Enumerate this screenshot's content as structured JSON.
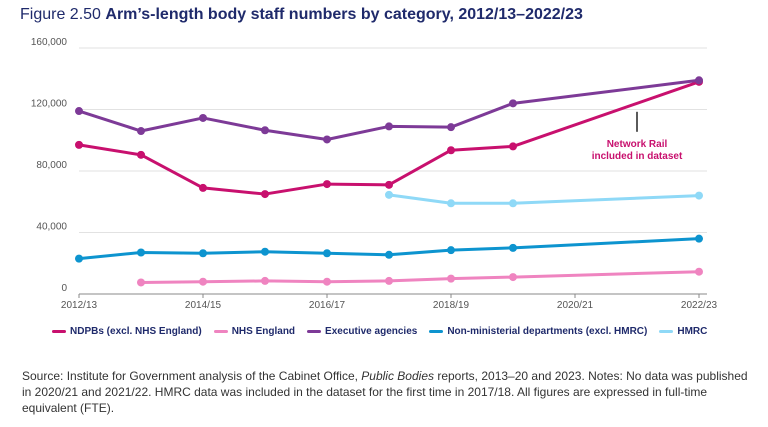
{
  "title": {
    "figure_number": "Figure 2.50",
    "text": "Arm’s-length body staff numbers by category, 2012/13–2022/23"
  },
  "chart_data": {
    "type": "line",
    "title": "Arm’s-length body staff numbers by category, 2012/13–2022/23",
    "xlabel": "",
    "ylabel": "",
    "x": [
      "2012/13",
      "2013/14",
      "2014/15",
      "2015/16",
      "2016/17",
      "2017/18",
      "2018/19",
      "2019/20",
      "2020/21",
      "2021/22",
      "2022/23"
    ],
    "x_tick_labels": [
      "2012/13",
      "2014/15",
      "2016/17",
      "2018/19",
      "2020/21",
      "2022/23"
    ],
    "ylim": [
      0,
      160000
    ],
    "y_ticks": [
      0,
      40000,
      80000,
      120000,
      160000
    ],
    "y_tick_labels": [
      "0",
      "40,000",
      "80,000",
      "120,000",
      "160,000"
    ],
    "grid": true,
    "series": [
      {
        "name": "NDPBs (excl. NHS England)",
        "color": "#c8106e",
        "values": [
          97000,
          90500,
          69000,
          65000,
          71500,
          71000,
          93500,
          96000,
          null,
          null,
          138000
        ]
      },
      {
        "name": "NHS England",
        "color": "#ef84c0",
        "values": [
          null,
          7500,
          8000,
          8500,
          8000,
          8500,
          10000,
          11000,
          null,
          null,
          14500
        ]
      },
      {
        "name": "Executive agencies",
        "color": "#7d3a97",
        "values": [
          119000,
          106000,
          114500,
          106500,
          100500,
          109000,
          108500,
          124000,
          null,
          null,
          139000
        ]
      },
      {
        "name": "Non-ministerial departments (excl. HMRC)",
        "color": "#0d94cf",
        "values": [
          23000,
          27000,
          26500,
          27500,
          26500,
          25500,
          28500,
          30000,
          null,
          null,
          36000
        ]
      },
      {
        "name": "HMRC",
        "color": "#8fd9f7",
        "values": [
          null,
          null,
          null,
          null,
          null,
          64500,
          59000,
          59000,
          null,
          null,
          64000
        ]
      }
    ],
    "annotations": [
      {
        "text_line1": "Network Rail",
        "text_line2": "included in dataset",
        "x": "2021/22",
        "y": 112000,
        "color": "#c8106e"
      }
    ]
  },
  "source": {
    "prefix": "Source: Institute for Government analysis of the Cabinet Office, ",
    "italic": "Public Bodies",
    "suffix": " reports, 2013–20 and 2023. Notes: No data was published in 2020/21 and 2021/22. HMRC data was included in the dataset for the first time in 2017/18. All figures are expressed in full-time equivalent (FTE)."
  }
}
